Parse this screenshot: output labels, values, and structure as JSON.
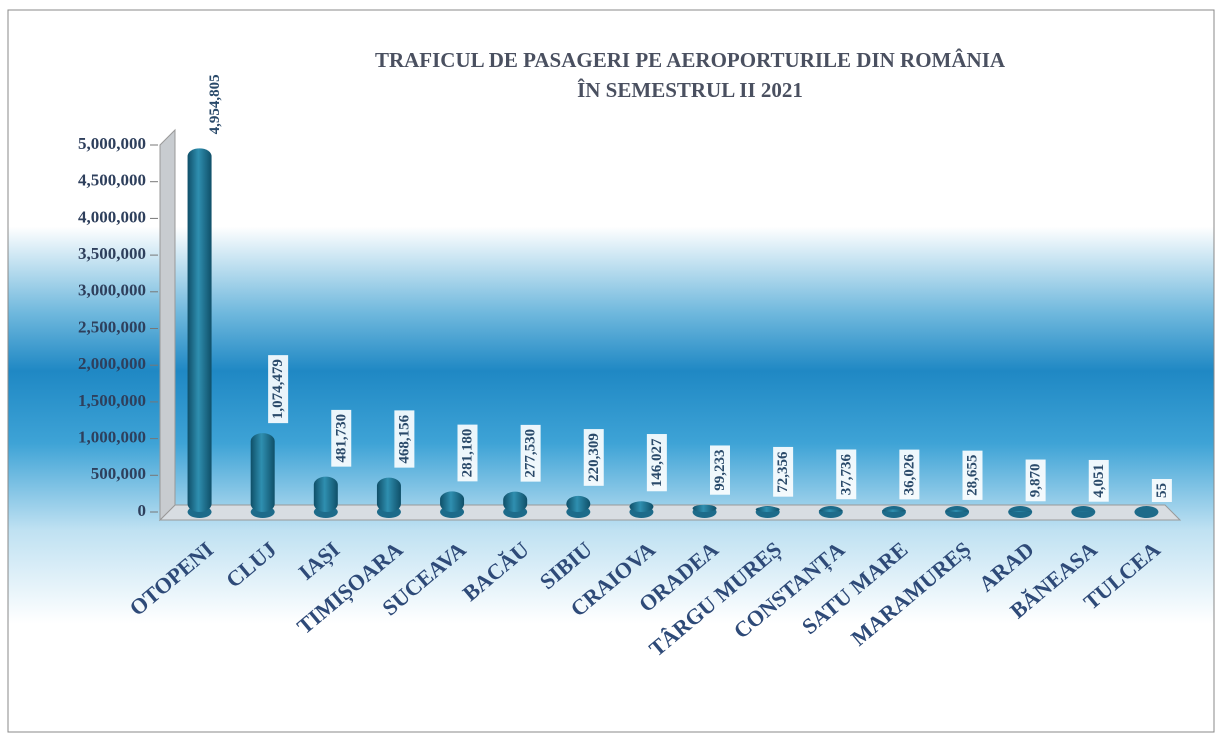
{
  "chart_data": {
    "type": "bar",
    "title": "TRAFICUL DE PASAGERI PE AEROPORTURILE DIN ROMÂNIA",
    "subtitle": "ÎN SEMESTRUL II 2021",
    "categories": [
      "OTOPENI",
      "CLUJ",
      "IAȘI",
      "TIMIȘOARA",
      "SUCEAVA",
      "BACĂU",
      "SIBIU",
      "CRAIOVA",
      "ORADEA",
      "TÂRGU MUREȘ",
      "CONSTANȚA",
      "SATU MARE",
      "MARAMUREȘ",
      "ARAD",
      "BĂNEASA",
      "TULCEA"
    ],
    "values": [
      4954805,
      1074479,
      481730,
      468156,
      281180,
      277530,
      220309,
      146027,
      99233,
      72356,
      37736,
      36026,
      28655,
      9870,
      4051,
      55
    ],
    "value_labels": [
      "4,954,805",
      "1,074,479",
      "481,730",
      "468,156",
      "281,180",
      "277,530",
      "220,309",
      "146,027",
      "99,233",
      "72,356",
      "37,736",
      "36,026",
      "28,655",
      "9,870",
      "4,051",
      "55"
    ],
    "color": "#1d6b8a",
    "ylim": [
      0,
      5000000
    ],
    "yticks": [
      0,
      {
        "value": 500000,
        "label": "500,000"
      },
      {
        "value": 1000000,
        "label": "1,000,000"
      },
      {
        "value": 1500000,
        "label": "1,500,000"
      },
      {
        "value": 2000000,
        "label": "2,000,000"
      },
      {
        "value": 2500000,
        "label": "2,500,000"
      },
      {
        "value": 3000000,
        "label": "3,000,000"
      },
      {
        "value": 3500000,
        "label": "3,500,000"
      },
      {
        "value": 4000000,
        "label": "4,000,000"
      },
      {
        "value": 4500000,
        "label": "4,500,000"
      },
      {
        "value": 5000000,
        "label": "5,000,000"
      }
    ]
  }
}
